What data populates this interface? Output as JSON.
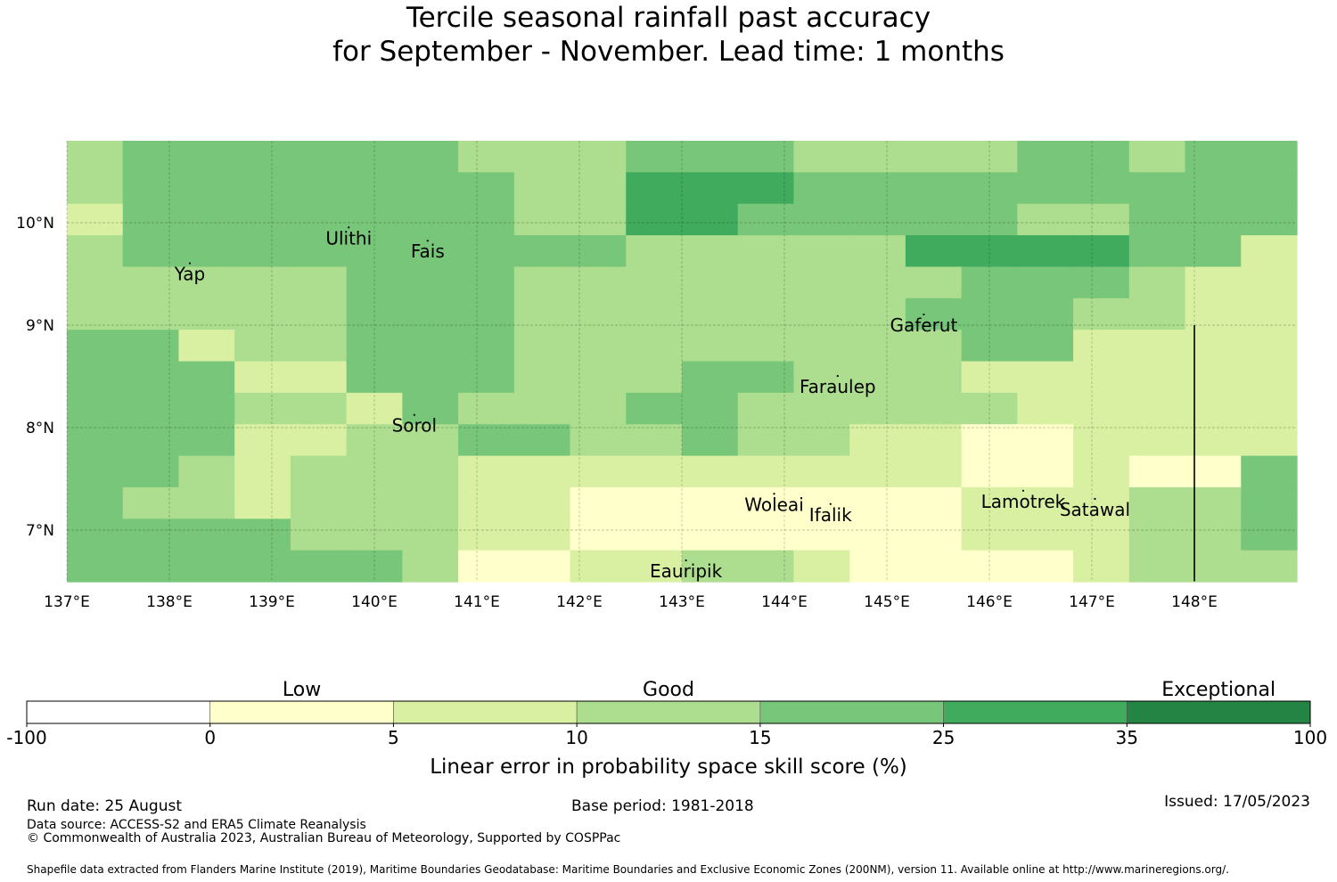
{
  "title": {
    "line1": "Tercile seasonal rainfall past accuracy",
    "line2": "for September - November. Lead time: 1 months"
  },
  "map": {
    "lon_range": [
      137,
      149
    ],
    "lat_range": [
      6.5,
      10.8
    ],
    "lon_ticks": [
      {
        "value": 137,
        "label": "137°E"
      },
      {
        "value": 138,
        "label": "138°E"
      },
      {
        "value": 139,
        "label": "139°E"
      },
      {
        "value": 140,
        "label": "140°E"
      },
      {
        "value": 141,
        "label": "141°E"
      },
      {
        "value": 142,
        "label": "142°E"
      },
      {
        "value": 143,
        "label": "143°E"
      },
      {
        "value": 144,
        "label": "144°E"
      },
      {
        "value": 145,
        "label": "145°E"
      },
      {
        "value": 146,
        "label": "146°E"
      },
      {
        "value": 147,
        "label": "147°E"
      },
      {
        "value": 148,
        "label": "148°E"
      }
    ],
    "lat_ticks": [
      {
        "value": 10,
        "label": "10°N"
      },
      {
        "value": 9,
        "label": "9°N"
      },
      {
        "value": 8,
        "label": "8°N"
      },
      {
        "value": 7,
        "label": "7°N"
      }
    ],
    "grid_category_rows": [
      "2333333222333222233233",
      "2333333322444333333333",
      "1333333322443333322333",
      "2333333333222224444331",
      "2222233322222222333211",
      "2222233322222223332211",
      "3312233322222222331111",
      "3331133322233222111111",
      "3332213222332222211111",
      "3331122332232211001111",
      "3321222111111111001003",
      "3221222110000000111223",
      "3333222110000000111223",
      "3333332001122100001222"
    ],
    "places": [
      {
        "name": "Yap",
        "lon": 138.2,
        "lat": 9.5
      },
      {
        "name": "Ulithi",
        "lon": 139.75,
        "lat": 9.85
      },
      {
        "name": "Fais",
        "lon": 140.52,
        "lat": 9.72
      },
      {
        "name": "Gaferut",
        "lon": 145.36,
        "lat": 9.0
      },
      {
        "name": "Faraulep",
        "lon": 144.52,
        "lat": 8.4
      },
      {
        "name": "Sorol",
        "lon": 140.39,
        "lat": 8.02
      },
      {
        "name": "Woleai",
        "lon": 143.9,
        "lat": 7.25
      },
      {
        "name": "Ifalik",
        "lon": 144.45,
        "lat": 7.15
      },
      {
        "name": "Lamotrek",
        "lon": 146.33,
        "lat": 7.28
      },
      {
        "name": "Satawal",
        "lon": 147.03,
        "lat": 7.2
      },
      {
        "name": "Eauripik",
        "lon": 143.04,
        "lat": 6.6
      }
    ],
    "boundary_line": {
      "lon": 148.0,
      "lat_from": 6.5,
      "lat_to": 9.0
    }
  },
  "legend": {
    "categories": [
      {
        "label": "Low",
        "under_bin": 1
      },
      {
        "label": "Good",
        "under_bin": 3
      },
      {
        "label": "Exceptional",
        "under_bin": 6
      }
    ],
    "bins": [
      {
        "from": -100,
        "to": 0,
        "color": "#ffffff"
      },
      {
        "from": 0,
        "to": 5,
        "color": "#ffffcc"
      },
      {
        "from": 5,
        "to": 10,
        "color": "#d9f0a3"
      },
      {
        "from": 10,
        "to": 15,
        "color": "#addd8e"
      },
      {
        "from": 15,
        "to": 25,
        "color": "#78c679"
      },
      {
        "from": 25,
        "to": 35,
        "color": "#41ab5d"
      },
      {
        "from": 35,
        "to": 100,
        "color": "#238443"
      }
    ],
    "ticks": [
      "-100",
      "0",
      "5",
      "10",
      "15",
      "25",
      "35",
      "100"
    ],
    "axis_label": "Linear error in probability space skill score (%)"
  },
  "footer": {
    "run_date": "Run date: 25 August",
    "base_period": "Base period: 1981-2018",
    "issued": "Issued: 17/05/2023",
    "data_source": "Data source: ACCESS-S2 and ERA5 Climate Reanalysis",
    "copyright": "© Commonwealth of Australia 2023, Australian Bureau of Meteorology, Supported by COSPPac",
    "shapefile": "Shapefile data extracted from Flanders Marine Institute (2019), Maritime Boundaries Geodatabase: Maritime Boundaries and Exclusive Economic Zones (200NM), version 11. Available online at http://www.marineregions.org/."
  }
}
